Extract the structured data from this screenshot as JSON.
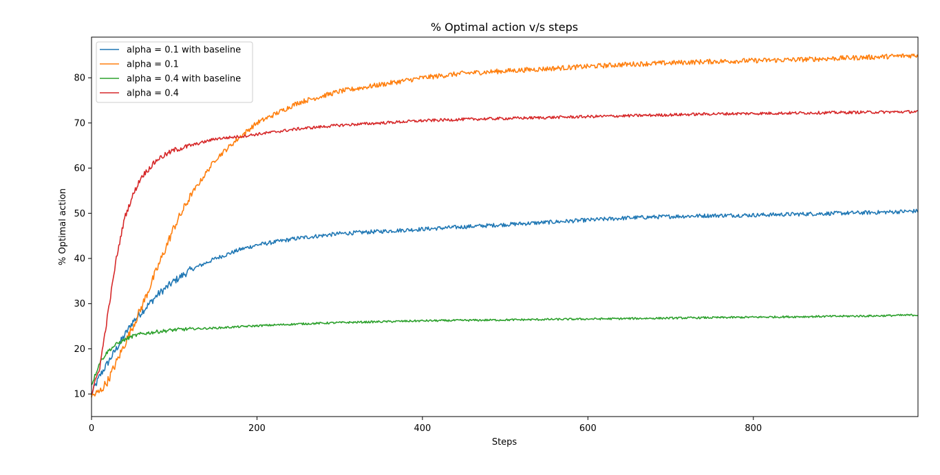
{
  "chart_data": {
    "type": "line",
    "title": "% Optimal action v/s steps",
    "xlabel": "Steps",
    "ylabel": "% Optimal action",
    "xlim": [
      0,
      999
    ],
    "ylim": [
      5,
      89
    ],
    "xticks": [
      0,
      200,
      400,
      600,
      800
    ],
    "yticks": [
      10,
      20,
      30,
      40,
      50,
      60,
      70,
      80
    ],
    "legend_position": "upper-left",
    "grid": false,
    "x": [
      0,
      10,
      20,
      30,
      40,
      50,
      60,
      80,
      100,
      120,
      150,
      180,
      200,
      250,
      300,
      350,
      400,
      450,
      500,
      550,
      600,
      650,
      700,
      750,
      800,
      850,
      900,
      950,
      999
    ],
    "series": [
      {
        "name": "alpha = 0.1 with baseline",
        "color": "#1f77b4",
        "values": [
          10,
          14,
          17,
          20,
          23,
          26,
          28,
          32,
          35,
          37.5,
          40,
          42,
          43,
          44.5,
          45.5,
          46,
          46.5,
          47,
          47.5,
          48,
          48.5,
          49,
          49.3,
          49.5,
          49.6,
          49.8,
          50,
          50.2,
          50.5
        ]
      },
      {
        "name": "alpha = 0.1",
        "color": "#ff7f0e",
        "values": [
          9.5,
          10.5,
          13,
          17,
          21,
          25,
          29,
          38,
          47,
          54,
          62,
          67,
          70,
          74.5,
          77,
          78.5,
          80,
          81,
          81.5,
          82,
          82.5,
          83,
          83.3,
          83.6,
          83.8,
          84,
          84.3,
          84.6,
          85
        ]
      },
      {
        "name": "alpha = 0.4 with baseline",
        "color": "#2ca02c",
        "values": [
          12,
          17,
          19.5,
          21,
          22,
          22.8,
          23.3,
          23.8,
          24.2,
          24.4,
          24.6,
          24.9,
          25.1,
          25.5,
          25.8,
          26,
          26.2,
          26.3,
          26.4,
          26.5,
          26.6,
          26.7,
          26.8,
          26.9,
          27,
          27.1,
          27.2,
          27.3,
          27.5
        ]
      },
      {
        "name": "alpha = 0.4",
        "color": "#d62728",
        "values": [
          10,
          16,
          28,
          40,
          49,
          54,
          58,
          62,
          64,
          65,
          66.5,
          67,
          67.5,
          68.7,
          69.5,
          70,
          70.5,
          70.8,
          71,
          71.2,
          71.4,
          71.6,
          71.8,
          72,
          72.1,
          72.2,
          72.3,
          72.4,
          72.5
        ]
      }
    ]
  }
}
